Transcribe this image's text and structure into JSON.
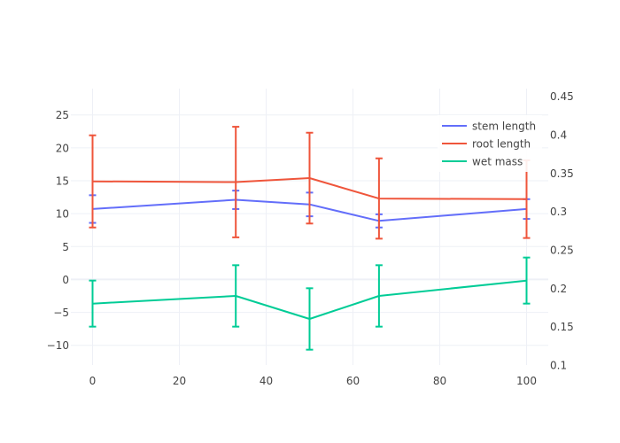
{
  "chart_data": {
    "type": "line",
    "x": [
      0,
      33,
      50,
      66,
      100
    ],
    "xlim": [
      -5,
      105
    ],
    "x_ticks": [
      "0",
      "20",
      "40",
      "60",
      "80",
      "100"
    ],
    "y_left_lim": [
      -13,
      29
    ],
    "y_left_ticks": [
      "−10",
      "−5",
      "0",
      "5",
      "10",
      "15",
      "20",
      "25"
    ],
    "y_right_lim": [
      0.1,
      0.46
    ],
    "y_right_ticks": [
      "0.1",
      "0.15",
      "0.2",
      "0.25",
      "0.3",
      "0.35",
      "0.4",
      "0.45"
    ],
    "grid": true,
    "legend_position": "top-right",
    "series": [
      {
        "name": "stem length",
        "axis": "left",
        "color": "#636efa",
        "values": [
          10.7,
          12.1,
          11.4,
          8.9,
          10.7
        ],
        "error": [
          2.1,
          1.4,
          1.8,
          1.0,
          1.5
        ]
      },
      {
        "name": "root length",
        "axis": "left",
        "color": "#ef553b",
        "values": [
          14.9,
          14.8,
          15.4,
          12.3,
          12.2
        ],
        "error": [
          7.0,
          8.4,
          6.9,
          6.1,
          5.9
        ]
      },
      {
        "name": "wet mass",
        "axis": "right",
        "color": "#00cc96",
        "values": [
          0.18,
          0.19,
          0.16,
          0.19,
          0.21
        ],
        "error": [
          0.03,
          0.04,
          0.04,
          0.04,
          0.03
        ]
      }
    ]
  }
}
